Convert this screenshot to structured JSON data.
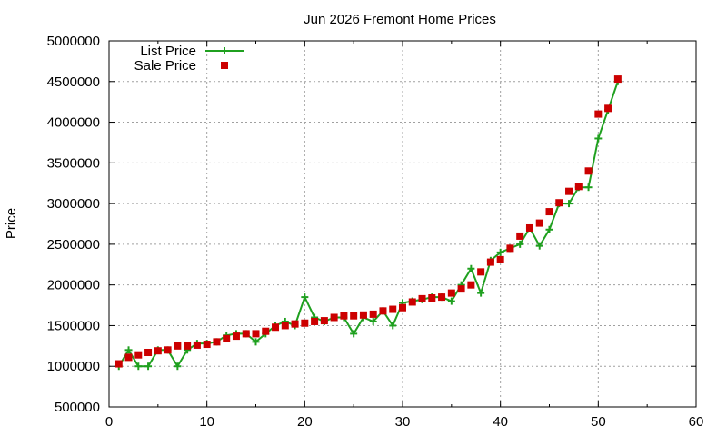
{
  "chart_data": {
    "type": "line",
    "title": "Jun 2026 Fremont Home Prices",
    "xlabel": "",
    "ylabel": "Price",
    "xlim": [
      0,
      60
    ],
    "ylim": [
      500000,
      5000000
    ],
    "x_ticks": [
      0,
      10,
      20,
      30,
      40,
      50,
      60
    ],
    "y_ticks": [
      500000,
      1000000,
      1500000,
      2000000,
      2500000,
      3000000,
      3500000,
      4000000,
      4500000,
      5000000
    ],
    "grid": true,
    "legend_position": "top-left",
    "series": [
      {
        "name": "List Price",
        "style": "line-with-plus-markers",
        "color": "#1fa01f",
        "x": [
          1,
          2,
          3,
          4,
          5,
          6,
          7,
          8,
          9,
          10,
          11,
          12,
          13,
          14,
          15,
          16,
          17,
          18,
          19,
          20,
          21,
          22,
          23,
          24,
          25,
          26,
          27,
          28,
          29,
          30,
          31,
          32,
          33,
          34,
          35,
          36,
          37,
          38,
          39,
          40,
          41,
          42,
          43,
          44,
          45,
          46,
          47,
          48,
          49,
          50,
          51,
          52
        ],
        "values": [
          1000000,
          1200000,
          1000000,
          1000000,
          1200000,
          1200000,
          1000000,
          1200000,
          1280000,
          1280000,
          1300000,
          1380000,
          1400000,
          1400000,
          1300000,
          1400000,
          1500000,
          1550000,
          1500000,
          1850000,
          1600000,
          1550000,
          1600000,
          1600000,
          1400000,
          1600000,
          1550000,
          1680000,
          1500000,
          1780000,
          1800000,
          1820000,
          1850000,
          1850000,
          1800000,
          2000000,
          2200000,
          1900000,
          2300000,
          2400000,
          2450000,
          2500000,
          2700000,
          2480000,
          2680000,
          3000000,
          3000000,
          3200000,
          3200000,
          3800000,
          4150000,
          4500000
        ]
      },
      {
        "name": "Sale Price",
        "style": "square-markers",
        "color": "#cc0000",
        "x": [
          1,
          2,
          3,
          4,
          5,
          6,
          7,
          8,
          9,
          10,
          11,
          12,
          13,
          14,
          15,
          16,
          17,
          18,
          19,
          20,
          21,
          22,
          23,
          24,
          25,
          26,
          27,
          28,
          29,
          30,
          31,
          32,
          33,
          34,
          35,
          36,
          37,
          38,
          39,
          40,
          41,
          42,
          43,
          44,
          45,
          46,
          47,
          48,
          49,
          50,
          51,
          52
        ],
        "values": [
          1030000,
          1110000,
          1140000,
          1170000,
          1190000,
          1200000,
          1250000,
          1250000,
          1260000,
          1270000,
          1300000,
          1340000,
          1370000,
          1400000,
          1400000,
          1430000,
          1480000,
          1500000,
          1520000,
          1530000,
          1550000,
          1560000,
          1600000,
          1620000,
          1620000,
          1630000,
          1640000,
          1680000,
          1700000,
          1720000,
          1790000,
          1830000,
          1840000,
          1850000,
          1900000,
          1950000,
          2000000,
          2160000,
          2280000,
          2310000,
          2450000,
          2600000,
          2700000,
          2760000,
          2900000,
          3010000,
          3150000,
          3210000,
          3400000,
          4100000,
          4170000,
          4530000
        ]
      }
    ]
  }
}
